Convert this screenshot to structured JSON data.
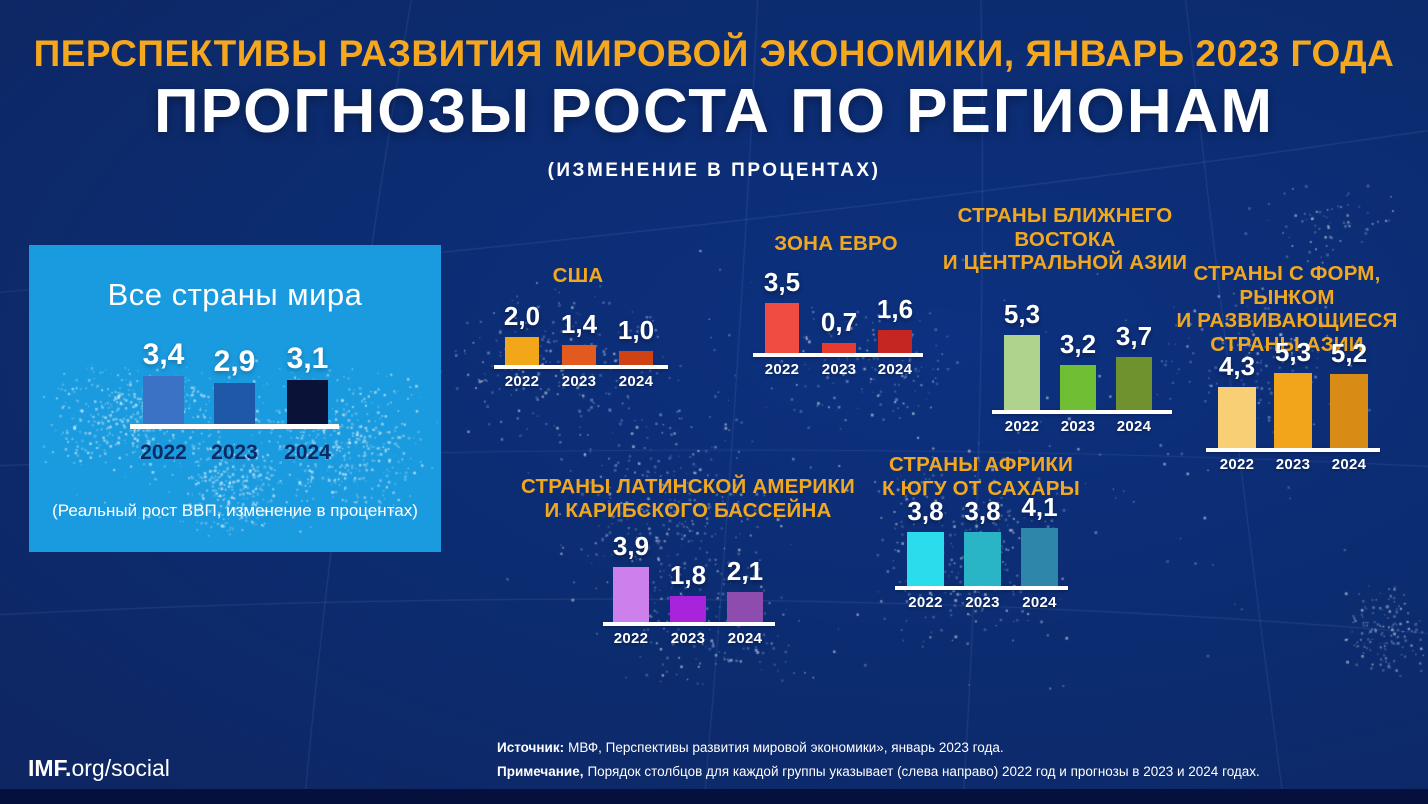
{
  "header": {
    "kicker": "ПЕРСПЕКТИВЫ РАЗВИТИЯ МИРОВОЙ ЭКОНОМИКИ, ЯНВАРЬ 2023 ГОДА",
    "title": "ПРОГНОЗЫ РОСТА ПО РЕГИОНАМ",
    "subtitle": "(ИЗМЕНЕНИЕ В ПРОЦЕНТАХ)"
  },
  "world": {
    "title": "Все страны мира",
    "caption": "(Реальный рост ВВП, изменение в процентах)",
    "years": [
      "2022",
      "2023",
      "2024"
    ],
    "labels": [
      "3,4",
      "2,9",
      "3,1"
    ],
    "values": [
      3.4,
      2.9,
      3.1
    ],
    "panel_bg": "#1a9bdf",
    "bar_colors": [
      "#3c72c6",
      "#1e58a6",
      "#0b1238"
    ]
  },
  "charts": [
    {
      "id": "usa",
      "title_lines": [
        "США"
      ],
      "years": [
        "2022",
        "2023",
        "2024"
      ],
      "labels": [
        "2,0",
        "1,4",
        "1,0"
      ],
      "values": [
        2.0,
        1.4,
        1.0
      ],
      "bar_colors": [
        "#f2a71b",
        "#e25a1e",
        "#ce4214"
      ]
    },
    {
      "id": "euro",
      "title_lines": [
        "ЗОНА ЕВРО"
      ],
      "years": [
        "2022",
        "2023",
        "2024"
      ],
      "labels": [
        "3,5",
        "0,7",
        "1,6"
      ],
      "values": [
        3.5,
        0.7,
        1.6
      ],
      "bar_colors": [
        "#f04c42",
        "#e53a30",
        "#c62622"
      ]
    },
    {
      "id": "mideast",
      "title_lines": [
        "СТРАНЫ БЛИЖНЕГО ВОСТОКА",
        "И ЦЕНТРАЛЬНОЙ АЗИИ"
      ],
      "years": [
        "2022",
        "2023",
        "2024"
      ],
      "labels": [
        "5,3",
        "3,2",
        "3,7"
      ],
      "values": [
        5.3,
        3.2,
        3.7
      ],
      "bar_colors": [
        "#afd28c",
        "#6fbe33",
        "#6f922f"
      ]
    },
    {
      "id": "asia",
      "title_lines": [
        "СТРАНЫ С ФОРМ, РЫНКОМ",
        "И РАЗВИВАЮЩИЕСЯ",
        "СТРАНЫ АЗИИ"
      ],
      "years": [
        "2022",
        "2023",
        "2024"
      ],
      "labels": [
        "4,3",
        "5,3",
        "5,2"
      ],
      "values": [
        4.3,
        5.3,
        5.2
      ],
      "bar_colors": [
        "#f8cf75",
        "#f0a51b",
        "#d88c15"
      ]
    },
    {
      "id": "latam",
      "title_lines": [
        "СТРАНЫ ЛАТИНСКОЙ АМЕРИКИ",
        "И КАРИБСКОГО БАССЕЙНА"
      ],
      "years": [
        "2022",
        "2023",
        "2024"
      ],
      "labels": [
        "3,9",
        "1,8",
        "2,1"
      ],
      "values": [
        3.9,
        1.8,
        2.1
      ],
      "bar_colors": [
        "#cd7fec",
        "#a724dc",
        "#8e4cae"
      ]
    },
    {
      "id": "africa",
      "title_lines": [
        "СТРАНЫ АФРИКИ",
        "К ЮГУ ОТ САХАРЫ"
      ],
      "years": [
        "2022",
        "2023",
        "2024"
      ],
      "labels": [
        "3,8",
        "3,8",
        "4,1"
      ],
      "values": [
        3.8,
        3.8,
        4.1
      ],
      "bar_colors": [
        "#2bdcec",
        "#2ab5c6",
        "#2e86ab"
      ]
    }
  ],
  "footer": {
    "brand_bold": "IMF.",
    "brand_rest": "org/social",
    "source_label": "Источник:",
    "source_text": "МВФ, Перспективы развития мировой экономики», январь 2023 года.",
    "note_label": "Примечание,",
    "note_text": "Порядок столбцов для каждой группы указывает  (слева направо) 2022 год и прогнозы в 2023 и 2024 годах."
  },
  "colors": {
    "accent_amber": "#f5a71d",
    "background_navy": "#0c2b6e",
    "panel_blue": "#1a9bdf",
    "bottom_strip": "#05113c",
    "white": "#ffffff"
  },
  "chart_data": [
    {
      "type": "bar",
      "title": "Все страны мира",
      "subtitle": "(Реальный рост ВВП, изменение в процентах)",
      "categories": [
        "2022",
        "2023",
        "2024"
      ],
      "values": [
        3.4,
        2.9,
        3.1
      ],
      "unit": "percent change",
      "legend_position": "none",
      "grid": false
    },
    {
      "type": "bar",
      "title": "США",
      "categories": [
        "2022",
        "2023",
        "2024"
      ],
      "values": [
        2.0,
        1.4,
        1.0
      ],
      "unit": "percent change",
      "grid": false
    },
    {
      "type": "bar",
      "title": "ЗОНА ЕВРО",
      "categories": [
        "2022",
        "2023",
        "2024"
      ],
      "values": [
        3.5,
        0.7,
        1.6
      ],
      "unit": "percent change",
      "grid": false
    },
    {
      "type": "bar",
      "title": "СТРАНЫ БЛИЖНЕГО ВОСТОКА И ЦЕНТРАЛЬНОЙ АЗИИ",
      "categories": [
        "2022",
        "2023",
        "2024"
      ],
      "values": [
        5.3,
        3.2,
        3.7
      ],
      "unit": "percent change",
      "grid": false
    },
    {
      "type": "bar",
      "title": "СТРАНЫ С ФОРМ, РЫНКОМ И РАЗВИВАЮЩИЕСЯ СТРАНЫ АЗИИ",
      "categories": [
        "2022",
        "2023",
        "2024"
      ],
      "values": [
        4.3,
        5.3,
        5.2
      ],
      "unit": "percent change",
      "grid": false
    },
    {
      "type": "bar",
      "title": "СТРАНЫ ЛАТИНСКОЙ АМЕРИКИ И КАРИБСКОГО БАССЕЙНА",
      "categories": [
        "2022",
        "2023",
        "2024"
      ],
      "values": [
        3.9,
        1.8,
        2.1
      ],
      "unit": "percent change",
      "grid": false
    },
    {
      "type": "bar",
      "title": "СТРАНЫ АФРИКИ К ЮГУ ОТ САХАРЫ",
      "categories": [
        "2022",
        "2023",
        "2024"
      ],
      "values": [
        3.8,
        3.8,
        4.1
      ],
      "unit": "percent change",
      "grid": false
    }
  ]
}
